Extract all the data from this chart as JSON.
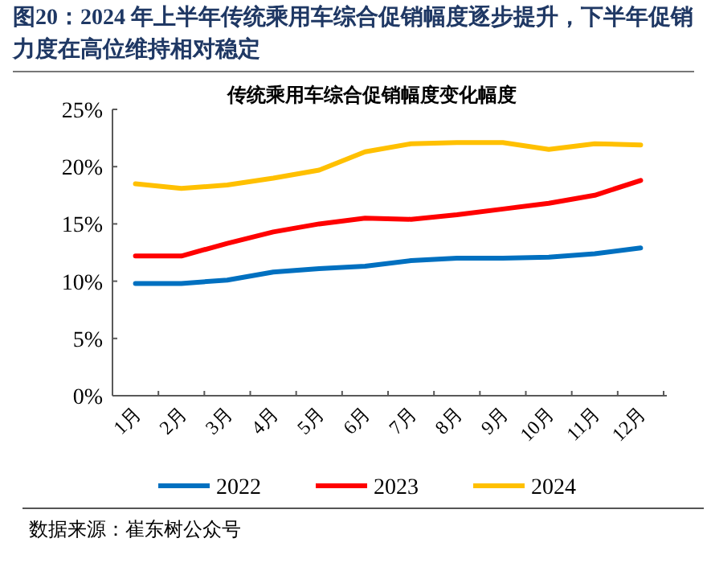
{
  "chart_data": {
    "type": "line",
    "title": "图20：2024 年上半年传统乘用车综合促销幅度逐步提升，下半年促销力度在高位维持相对稳定",
    "subtitle": "传统乘用车综合促销幅度变化幅度",
    "categories": [
      "1月",
      "2月",
      "3月",
      "4月",
      "5月",
      "6月",
      "7月",
      "8月",
      "9月",
      "10月",
      "11月",
      "12月"
    ],
    "series": [
      {
        "name": "2022",
        "color": "#0070c0",
        "values": [
          9.8,
          9.8,
          10.1,
          10.8,
          11.1,
          11.3,
          11.8,
          12.0,
          12.0,
          12.1,
          12.4,
          12.9
        ]
      },
      {
        "name": "2023",
        "color": "#ff0000",
        "values": [
          12.2,
          12.2,
          13.3,
          14.3,
          15.0,
          15.5,
          15.4,
          15.8,
          16.3,
          16.8,
          17.5,
          18.8
        ]
      },
      {
        "name": "2024",
        "color": "#ffc000",
        "values": [
          18.5,
          18.1,
          18.4,
          19.0,
          19.7,
          21.3,
          22.0,
          22.1,
          22.1,
          21.5,
          22.0,
          21.9
        ]
      }
    ],
    "ylim": [
      0,
      25
    ],
    "yticks": [
      {
        "value": 0,
        "label": "0%"
      },
      {
        "value": 5,
        "label": "5%"
      },
      {
        "value": 10,
        "label": "10%"
      },
      {
        "value": 15,
        "label": "15%"
      },
      {
        "value": 20,
        "label": "20%"
      },
      {
        "value": 25,
        "label": "25%"
      }
    ],
    "legend": "bottom",
    "marker": "none",
    "line_style": "solid",
    "annotations": [
      "数据来源：崔东树公众号"
    ]
  }
}
